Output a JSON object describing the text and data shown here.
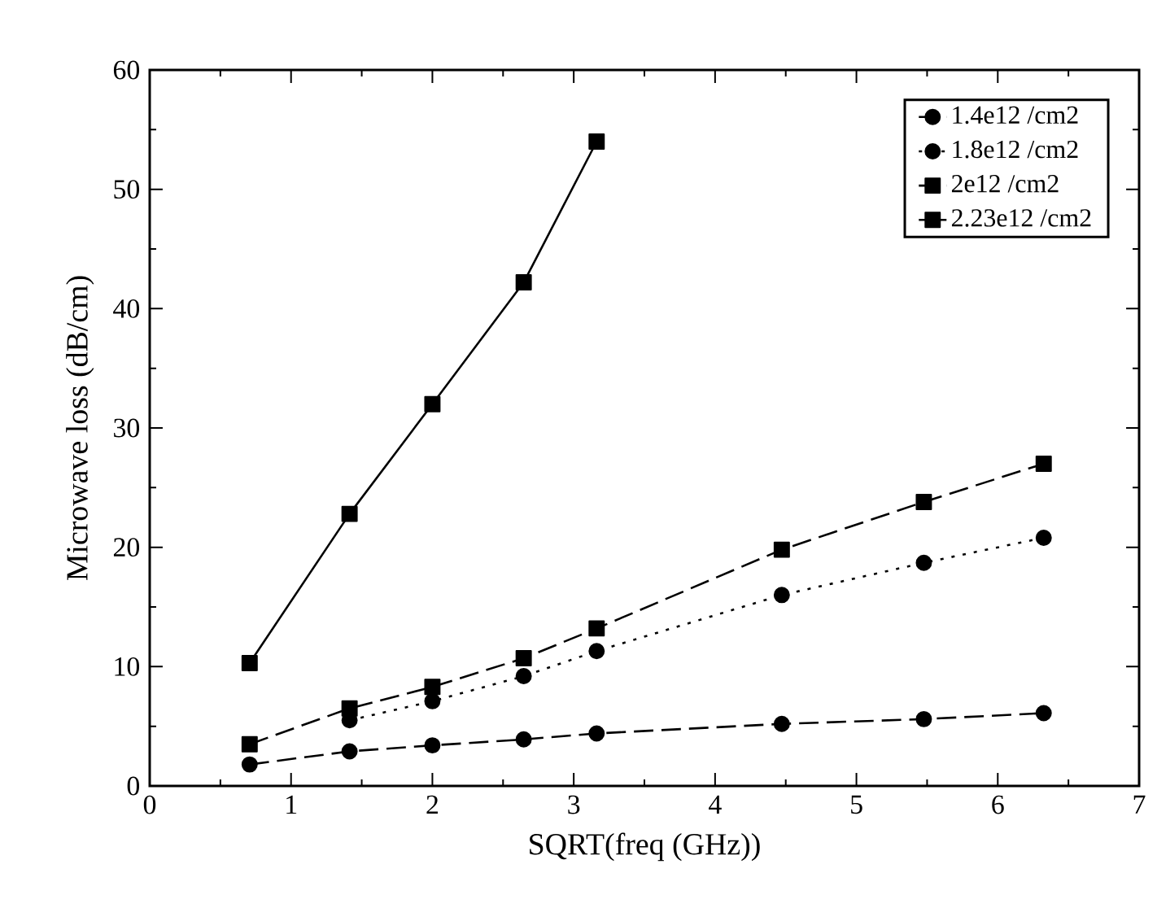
{
  "chart_data": {
    "type": "line",
    "xlabel": "SQRT(freq (GHz))",
    "ylabel": "Microwave loss (dB/cm)",
    "xlim": [
      0,
      7
    ],
    "ylim": [
      0,
      60
    ],
    "xticks": [
      0,
      1,
      2,
      3,
      4,
      5,
      6,
      7
    ],
    "yticks": [
      0,
      10,
      20,
      30,
      40,
      50,
      60
    ],
    "legend": "top right",
    "grid": false,
    "series": [
      {
        "name": "1.4e12 /cm2",
        "color": "#000000",
        "marker": "circle",
        "line_style": "dashed",
        "x": [
          0.707,
          1.414,
          2,
          2.646,
          3.162,
          4.472,
          5.477,
          6.325
        ],
        "values": [
          1.8,
          2.9,
          3.4,
          3.9,
          4.4,
          5.2,
          5.6,
          6.1
        ]
      },
      {
        "name": "1.8e12 /cm2",
        "color": "#000000",
        "marker": "circle",
        "line_style": "dotted",
        "x": [
          1.414,
          2,
          2.646,
          3.162,
          4.472,
          5.477,
          6.325
        ],
        "values": [
          5.5,
          7.1,
          9.2,
          11.3,
          16,
          18.7,
          20.8
        ]
      },
      {
        "name": "2e12 /cm2",
        "color": "#000000",
        "marker": "square",
        "line_style": "dashed",
        "x": [
          0.707,
          1.414,
          2,
          2.646,
          3.162,
          4.472,
          5.477,
          6.325
        ],
        "values": [
          3.5,
          6.5,
          8.3,
          10.7,
          13.2,
          19.8,
          23.8,
          27
        ]
      },
      {
        "name": "2.23e12 /cm2",
        "color": "#000000",
        "marker": "square",
        "line_style": "solid",
        "x": [
          0.707,
          1.414,
          2,
          2.646,
          3.162
        ],
        "values": [
          10.3,
          22.8,
          32,
          42.2,
          54
        ]
      }
    ]
  }
}
